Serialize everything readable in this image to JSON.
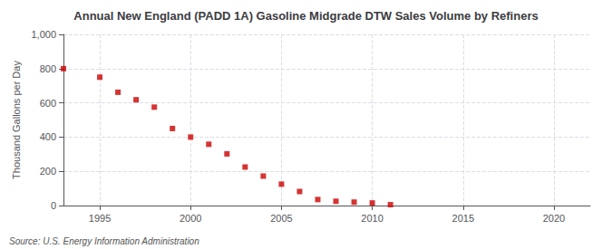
{
  "chart_data": {
    "type": "scatter",
    "title": "Annual New England (PADD 1A) Gasoline Midgrade DTW Sales Volume by Refiners",
    "ylabel": "Thousand Gallons per Day",
    "annotations": [
      "Source: U.S. Energy Information Administration"
    ],
    "x": [
      1993,
      1995,
      1996,
      1997,
      1998,
      1999,
      2000,
      2001,
      2002,
      2003,
      2004,
      2005,
      2006,
      2007,
      2008,
      2009,
      2010,
      2011
    ],
    "values": [
      800,
      750,
      662,
      618,
      575,
      450,
      400,
      358,
      302,
      225,
      172,
      125,
      82,
      35,
      25,
      20,
      15,
      5
    ],
    "color": "#cc0000",
    "marker": "square",
    "xlim": [
      1993,
      2022
    ],
    "ylim": [
      0,
      1000
    ],
    "xticks": [
      1995,
      2000,
      2005,
      2010,
      2015,
      2020
    ],
    "yticks": [
      0,
      200,
      400,
      600,
      800,
      {
        "value": 1000,
        "label": "1,000"
      }
    ],
    "grid": true
  }
}
